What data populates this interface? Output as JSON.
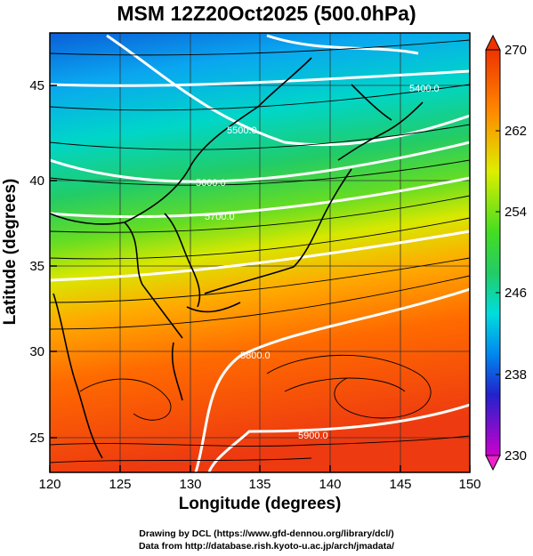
{
  "title": "MSM 12Z20Oct2025 (500.0hPa)",
  "axes": {
    "xlabel": "Longitude (degrees)",
    "ylabel": "Latitude  (degrees)",
    "x_ticks": [
      "120",
      "125",
      "130",
      "135",
      "140",
      "145",
      "150"
    ],
    "y_ticks": [
      "25",
      "30",
      "35",
      "40",
      "45"
    ],
    "xlim": [
      120,
      150
    ],
    "ylim": [
      22.4,
      47.6
    ]
  },
  "colorbar": {
    "ticks": [
      "270",
      "262",
      "254",
      "246",
      "238",
      "230"
    ],
    "min": 230,
    "max": 270,
    "colors": [
      "#cc00cc",
      "#2222cc",
      "#0088ee",
      "#00dddd",
      "#22cc66",
      "#44dd22",
      "#ddee00",
      "#ff8800",
      "#ee3300"
    ]
  },
  "contours": {
    "labels": [
      "5400.0",
      "5500.0",
      "5600.0",
      "5700.0",
      "5800.0",
      "5900.0"
    ]
  },
  "credits": {
    "line1": "Drawing by DCL (https://www.gfd-dennou.org/library/dcl/)",
    "line2": "Data from http://database.rish.kyoto-u.ac.jp/arch/jmadata/"
  }
}
